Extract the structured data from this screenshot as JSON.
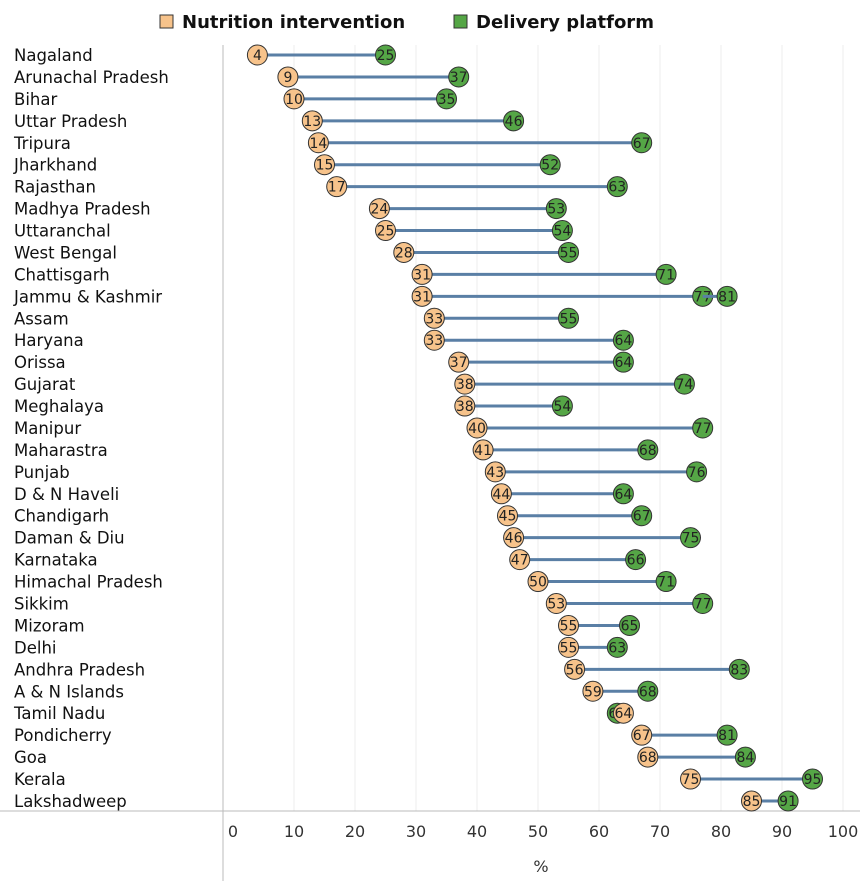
{
  "chart_data": {
    "type": "dumbbell",
    "title": "",
    "xlabel": "%",
    "ylabel": "",
    "xlim": [
      0,
      100
    ],
    "x_ticks": [
      "0",
      "10",
      "20",
      "30",
      "40",
      "50",
      "60",
      "70",
      "80",
      "90",
      "100"
    ],
    "grid": true,
    "legend_placement": "top",
    "colors": {
      "nutrition": "#f7c38b",
      "delivery": "#55a646",
      "connector": "#5a7fa5",
      "marker_edge": "#333333"
    },
    "series": [
      {
        "name": "Nutrition intervention",
        "values": [
          4,
          9,
          10,
          13,
          14,
          15,
          17,
          24,
          25,
          28,
          31,
          31,
          33,
          33,
          37,
          38,
          38,
          40,
          41,
          43,
          44,
          45,
          46,
          47,
          50,
          53,
          55,
          55,
          56,
          59,
          64,
          67,
          68,
          75,
          85
        ]
      },
      {
        "name": "Delivery platform",
        "values": [
          25,
          37,
          35,
          46,
          67,
          52,
          63,
          53,
          54,
          55,
          71,
          77,
          55,
          64,
          64,
          74,
          54,
          77,
          68,
          76,
          64,
          67,
          75,
          66,
          71,
          77,
          65,
          63,
          83,
          68,
          63,
          81,
          84,
          95,
          91
        ]
      }
    ],
    "extra_points": [
      {
        "category": "Jammu & Kashmir",
        "value": 81,
        "series": "Delivery platform"
      }
    ],
    "categories": [
      "Nagaland",
      "Arunachal Pradesh",
      "Bihar",
      "Uttar Pradesh",
      "Tripura",
      "Jharkhand",
      "Rajasthan",
      "Madhya Pradesh",
      "Uttaranchal",
      "West Bengal",
      "Chattisgarh",
      "Jammu & Kashmir",
      "Assam",
      "Haryana",
      "Orissa",
      "Gujarat",
      "Meghalaya",
      "Manipur",
      "Maharastra",
      "Punjab",
      "D & N Haveli",
      "Chandigarh",
      "Daman & Diu",
      "Karnataka",
      "Himachal Pradesh",
      "Sikkim",
      "Mizoram",
      "Delhi",
      "Andhra Pradesh",
      "A & N Islands",
      "Tamil Nadu",
      "Pondicherry",
      "Goa",
      "Kerala",
      "Lakshadweep"
    ]
  }
}
